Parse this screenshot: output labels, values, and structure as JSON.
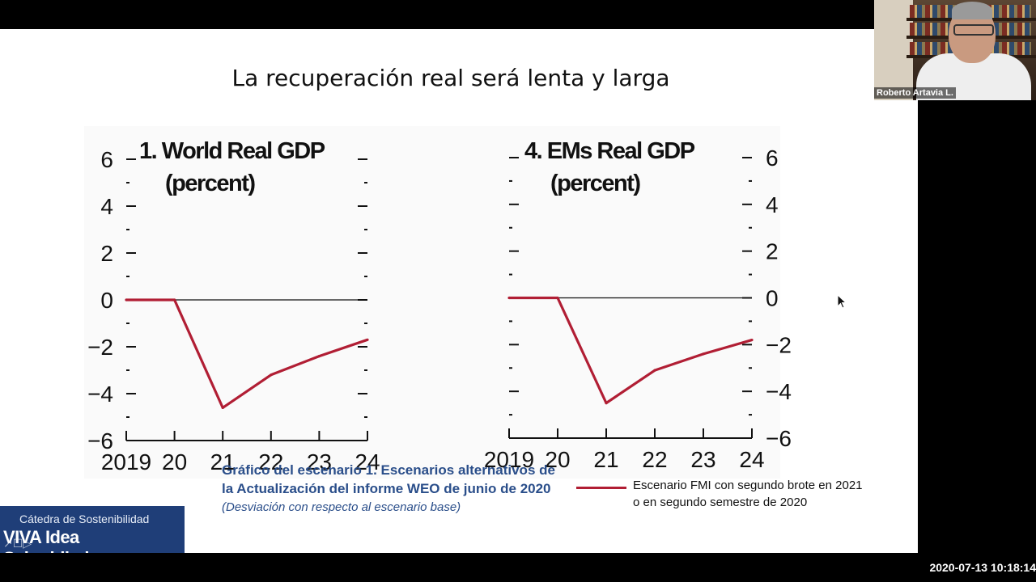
{
  "slide": {
    "title": "La recuperación real será lenta y larga",
    "caption_line1": "Gráfico del escenario  1. Escenarios alternativos de",
    "caption_line2": "la Actualización del informe WEO de junio de 2020",
    "caption_sub": "(Desviación con respecto al escenario base)",
    "legend_line1": "Escenario FMI con segundo brote en 2021",
    "legend_line2": "o en segundo semestre de 2020"
  },
  "colors": {
    "series": "#b11e34",
    "caption": "#2a4e8a",
    "watermark_bg": "#1f3e78"
  },
  "webcam": {
    "name": "Roberto Artavia L."
  },
  "watermark": {
    "line1": "Cátedra de Sostenibilidad",
    "line2": "VIVA Idea Schmidheiny"
  },
  "timestamp": "2020-07-13  10:18:14",
  "chart_data": [
    {
      "type": "line",
      "title_line1": "1. World Real GDP",
      "title_line2": "(percent)",
      "x_labels": [
        "2019",
        "20",
        "21",
        "22",
        "23",
        "24"
      ],
      "y_ticks": [
        "6",
        "4",
        "2",
        "0",
        "−2",
        "−4",
        "−6"
      ],
      "ylim": [
        -6,
        6
      ],
      "y_axis_side": "left",
      "series": [
        {
          "values": [
            0,
            0,
            -4.6,
            -3.2,
            -2.4,
            -1.7
          ]
        }
      ]
    },
    {
      "type": "line",
      "title_line1": "4. EMs Real GDP",
      "title_line2": "(percent)",
      "x_labels": [
        "2019",
        "20",
        "21",
        "22",
        "23",
        "24"
      ],
      "y_ticks": [
        "6",
        "4",
        "2",
        "0",
        "−2",
        "−4",
        "−6"
      ],
      "ylim": [
        -6,
        6
      ],
      "y_axis_side": "right",
      "series": [
        {
          "values": [
            0,
            0,
            -4.5,
            -3.1,
            -2.4,
            -1.8
          ]
        }
      ]
    }
  ]
}
